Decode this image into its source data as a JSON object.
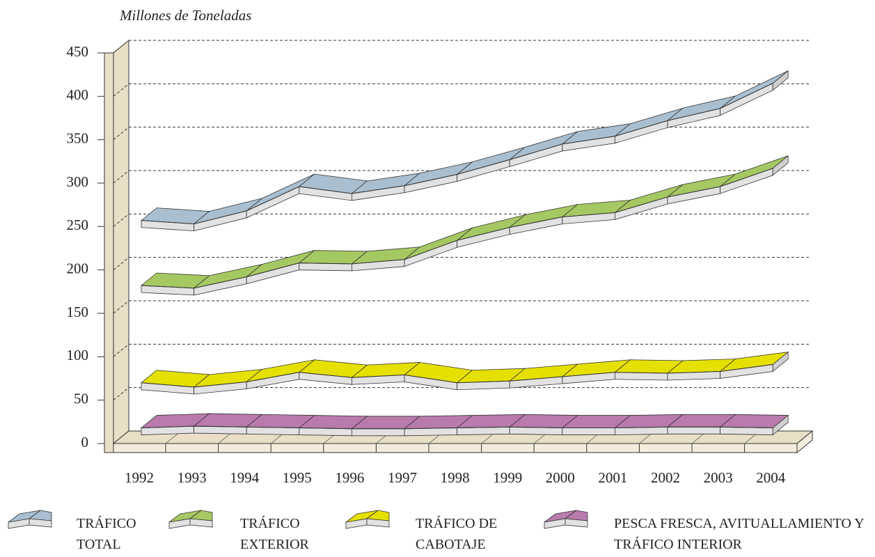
{
  "chart_data": {
    "type": "line3d",
    "title": "Millones de Toneladas",
    "categories": [
      "1992",
      "1993",
      "1994",
      "1995",
      "1996",
      "1997",
      "1998",
      "1999",
      "2000",
      "2001",
      "2002",
      "2003",
      "2004"
    ],
    "ylim": [
      0,
      450
    ],
    "yticks": [
      0,
      50,
      100,
      150,
      200,
      250,
      300,
      350,
      400,
      450
    ],
    "grid": true,
    "series": [
      {
        "name": "TRÁFICO TOTAL",
        "color": "#a9bfd0",
        "values": [
          257,
          253,
          268,
          296,
          288,
          297,
          310,
          327,
          345,
          354,
          372,
          386,
          415
        ]
      },
      {
        "name": "TRÁFICO EXTERIOR",
        "color": "#a6c862",
        "values": [
          182,
          179,
          192,
          208,
          207,
          212,
          234,
          249,
          261,
          266,
          284,
          296,
          317
        ]
      },
      {
        "name": "TRÁFICO DE CABOTAJE",
        "color": "#e6e000",
        "values": [
          70,
          65,
          71,
          82,
          76,
          79,
          70,
          72,
          77,
          82,
          81,
          83,
          91
        ]
      },
      {
        "name": "PESCA FRESCA, AVITUALLAMIENTO Y TRÁFICO INTERIOR",
        "color": "#b97aac",
        "values": [
          18,
          20,
          19,
          18,
          17,
          17,
          18,
          19,
          18,
          18,
          19,
          19,
          18
        ]
      }
    ]
  }
}
